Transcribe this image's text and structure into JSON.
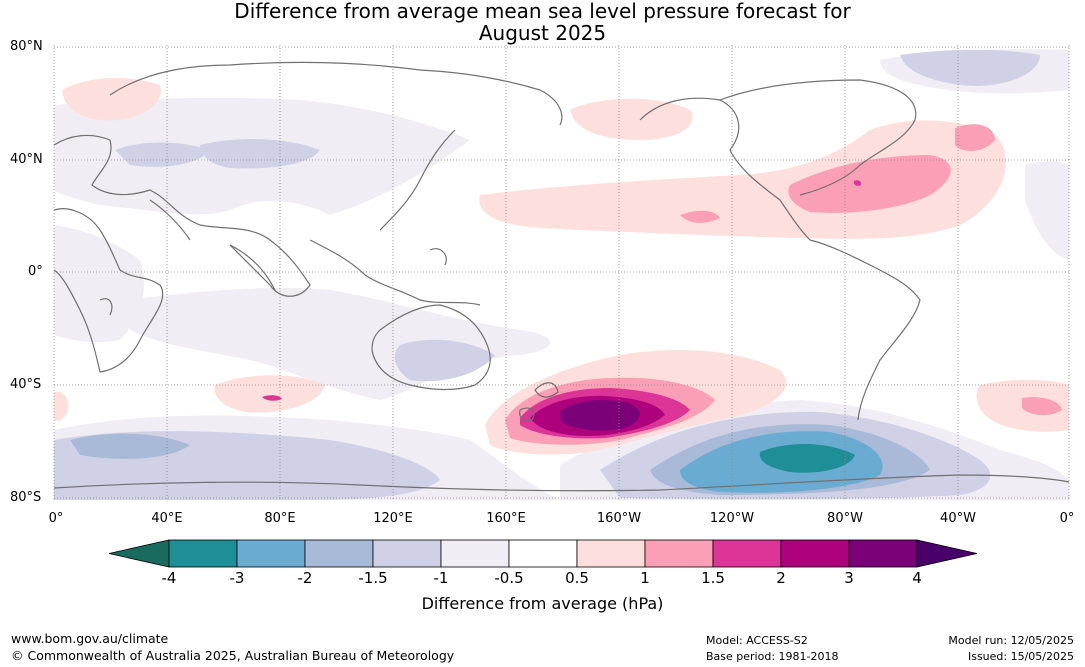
{
  "title_line1": "Difference from average mean sea level pressure forecast for",
  "title_line2": "August 2025",
  "lat_labels": [
    "80°N",
    "40°N",
    "0°",
    "40°S",
    "80°S"
  ],
  "lon_labels": [
    "0°",
    "40°E",
    "80°E",
    "120°E",
    "160°E",
    "160°W",
    "120°W",
    "80°W",
    "40°W",
    "0°"
  ],
  "colorbar": {
    "labels": [
      "-4",
      "-3",
      "-2",
      "-1.5",
      "-1",
      "-0.5",
      "0.5",
      "1",
      "1.5",
      "2",
      "3",
      "4"
    ],
    "colors": [
      "#1a6b5f",
      "#1e8f96",
      "#6aabd2",
      "#a9bad8",
      "#d0d1e6",
      "#f1edf4",
      "#ffffff",
      "#fde0dd",
      "#fa9fb5",
      "#dd3497",
      "#ae017e",
      "#7a0177",
      "#49006a"
    ],
    "units_label": "Difference from average (hPa)"
  },
  "footer": {
    "url": "www.bom.gov.au/climate",
    "copyright": "© Commonwealth of Australia 2025, Australian Bureau of Meteorology",
    "model": "Model: ACCESS-S2",
    "base_period": "Base period: 1981-2018",
    "model_run": "Model run: 12/05/2025",
    "issued": "Issued: 15/05/2025"
  }
}
